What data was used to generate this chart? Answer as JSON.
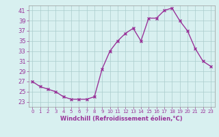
{
  "x": [
    0,
    1,
    2,
    3,
    4,
    5,
    6,
    7,
    8,
    9,
    10,
    11,
    12,
    13,
    14,
    15,
    16,
    17,
    18,
    19,
    20,
    21,
    22,
    23
  ],
  "y": [
    27,
    26,
    25.5,
    25,
    24,
    23.5,
    23.5,
    23.5,
    24,
    29.5,
    33,
    35,
    36.5,
    37.5,
    35,
    39.5,
    39.5,
    41,
    41.5,
    39,
    37,
    33.5,
    31,
    30
  ],
  "line_color": "#993399",
  "marker": "x",
  "marker_color": "#993399",
  "bg_color": "#d8f0f0",
  "grid_color": "#aacccc",
  "xlabel": "Windchill (Refroidissement éolien,°C)",
  "xlabel_color": "#993399",
  "tick_color": "#993399",
  "axis_color": "#999999",
  "ylim": [
    22,
    42
  ],
  "xlim": [
    -0.5,
    23.5
  ],
  "yticks": [
    23,
    25,
    27,
    29,
    31,
    33,
    35,
    37,
    39,
    41
  ],
  "xticks": [
    0,
    1,
    2,
    3,
    4,
    5,
    6,
    7,
    8,
    9,
    10,
    11,
    12,
    13,
    14,
    15,
    16,
    17,
    18,
    19,
    20,
    21,
    22,
    23
  ],
  "ytick_fontsize": 6,
  "xtick_fontsize": 5,
  "xlabel_fontsize": 6
}
